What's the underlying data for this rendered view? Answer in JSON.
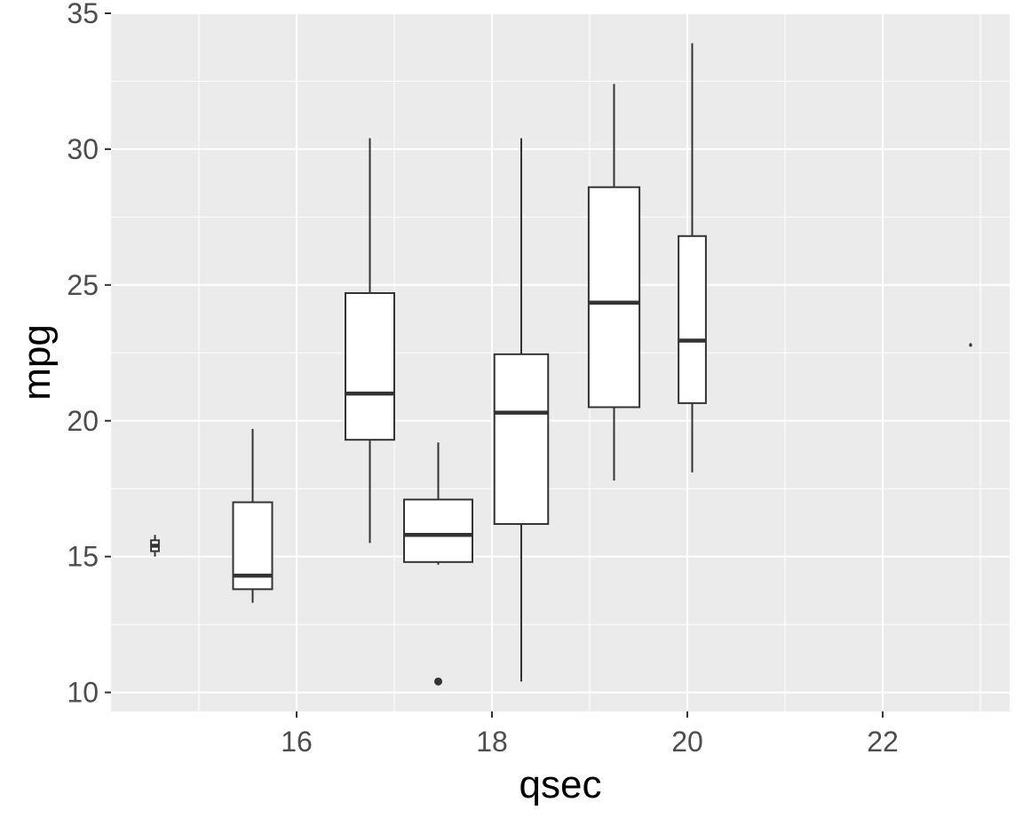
{
  "chart_data": {
    "type": "boxplot",
    "title": "",
    "xlabel": "qsec",
    "ylabel": "mpg",
    "xlim": [
      14.1,
      23.3
    ],
    "ylim": [
      9.3,
      35.0
    ],
    "x_ticks": [
      16,
      18,
      20,
      22
    ],
    "x_minor": [
      15,
      17,
      19,
      21,
      23
    ],
    "y_ticks": [
      10,
      15,
      20,
      25,
      30,
      35
    ],
    "y_minor": [
      12.5,
      17.5,
      22.5,
      27.5,
      32.5
    ],
    "grid": true,
    "colors": {
      "panel": "#ebebeb",
      "grid": "#ffffff",
      "box_fill": "#ffffff",
      "line": "#333333",
      "tick_text": "#4d4d4d"
    },
    "boxes": [
      {
        "x": 14.55,
        "width": 0.08,
        "whisker_low": 15.0,
        "q1": 15.2,
        "median": 15.4,
        "q3": 15.6,
        "whisker_high": 15.8,
        "outliers": []
      },
      {
        "x": 15.55,
        "width": 0.4,
        "whisker_low": 13.3,
        "q1": 13.8,
        "median": 14.3,
        "q3": 17.0,
        "whisker_high": 19.7,
        "outliers": []
      },
      {
        "x": 16.75,
        "width": 0.5,
        "whisker_low": 15.5,
        "q1": 19.3,
        "median": 21.0,
        "q3": 24.7,
        "whisker_high": 30.4,
        "outliers": []
      },
      {
        "x": 17.45,
        "width": 0.7,
        "whisker_low": 14.7,
        "q1": 14.8,
        "median": 15.8,
        "q3": 17.1,
        "whisker_high": 19.2,
        "outliers": [
          10.4
        ]
      },
      {
        "x": 18.3,
        "width": 0.55,
        "whisker_low": 10.4,
        "q1": 16.2,
        "median": 20.3,
        "q3": 22.45,
        "whisker_high": 30.4,
        "outliers": []
      },
      {
        "x": 19.25,
        "width": 0.52,
        "whisker_low": 17.8,
        "q1": 20.5,
        "median": 24.35,
        "q3": 28.6,
        "whisker_high": 32.4,
        "outliers": []
      },
      {
        "x": 20.05,
        "width": 0.28,
        "whisker_low": 18.1,
        "q1": 20.65,
        "median": 22.95,
        "q3": 26.8,
        "whisker_high": 33.9,
        "outliers": []
      },
      {
        "x": 22.9,
        "width": 0.01,
        "whisker_low": 22.8,
        "q1": 22.8,
        "median": 22.8,
        "q3": 22.8,
        "whisker_high": 22.8,
        "outliers": []
      }
    ]
  }
}
